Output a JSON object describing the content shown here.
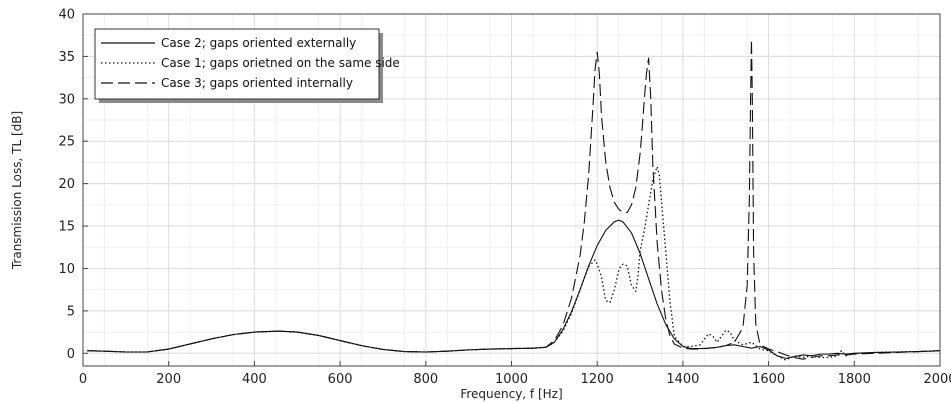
{
  "chart_data": {
    "type": "line",
    "title": "",
    "xlabel": "Frequency, f [Hz]",
    "ylabel": "Transmission Loss, TL [dB]",
    "xlim": [
      0,
      2000
    ],
    "ylim": [
      -1.5,
      40
    ],
    "xticks": [
      0,
      200,
      400,
      600,
      800,
      1000,
      1200,
      1400,
      1600,
      1800,
      2000
    ],
    "yticks": [
      0,
      5,
      10,
      15,
      20,
      25,
      30,
      35,
      40
    ],
    "xtick_labels": [
      "0",
      "200",
      "400",
      "600",
      "800",
      "1000",
      "1200",
      "1400",
      "1600",
      "1800",
      "2000"
    ],
    "ytick_labels": [
      "0",
      "5",
      "10",
      "15",
      "20",
      "25",
      "30",
      "35",
      "40"
    ],
    "grid": true,
    "legend_position": "top-left",
    "series": [
      {
        "name": "Case 2; gaps oriented externally",
        "style": "solid",
        "x": [
          10,
          50,
          100,
          150,
          200,
          250,
          300,
          350,
          400,
          450,
          460,
          500,
          550,
          600,
          650,
          700,
          750,
          800,
          850,
          900,
          950,
          1000,
          1050,
          1080,
          1100,
          1120,
          1140,
          1160,
          1180,
          1200,
          1220,
          1240,
          1250,
          1260,
          1280,
          1300,
          1320,
          1340,
          1360,
          1380,
          1400,
          1420,
          1440,
          1460,
          1480,
          1500,
          1520,
          1540,
          1560,
          1580,
          1600,
          1620,
          1640,
          1660,
          1680,
          1700,
          1720,
          1740,
          1760,
          1780,
          1800,
          1850,
          1900,
          1950,
          2000
        ],
        "y": [
          0.3,
          0.25,
          0.15,
          0.15,
          0.5,
          1.1,
          1.7,
          2.2,
          2.5,
          2.6,
          2.6,
          2.5,
          2.1,
          1.5,
          0.9,
          0.45,
          0.2,
          0.15,
          0.25,
          0.4,
          0.5,
          0.55,
          0.6,
          0.7,
          1.3,
          2.8,
          4.9,
          7.5,
          10.3,
          12.7,
          14.5,
          15.5,
          15.7,
          15.5,
          14.2,
          11.8,
          8.8,
          5.8,
          3.4,
          1.7,
          0.8,
          0.55,
          0.55,
          0.6,
          0.7,
          0.9,
          1.0,
          0.8,
          0.6,
          0.8,
          0.4,
          -0.3,
          -0.6,
          -0.4,
          -0.2,
          -0.3,
          -0.1,
          -0.1,
          0.0,
          -0.1,
          0.0,
          0.1,
          0.15,
          0.2,
          0.3
        ]
      },
      {
        "name": "Case 1; gaps orietned on the same side",
        "style": "dotted",
        "x": [
          10,
          50,
          100,
          150,
          200,
          250,
          300,
          350,
          400,
          450,
          460,
          500,
          550,
          600,
          650,
          700,
          750,
          800,
          850,
          900,
          950,
          1000,
          1050,
          1080,
          1100,
          1120,
          1140,
          1160,
          1180,
          1195,
          1200,
          1210,
          1220,
          1230,
          1240,
          1250,
          1255,
          1260,
          1270,
          1280,
          1290,
          1295,
          1300,
          1310,
          1320,
          1330,
          1340,
          1345,
          1350,
          1360,
          1370,
          1380,
          1400,
          1420,
          1440,
          1460,
          1470,
          1480,
          1490,
          1500,
          1510,
          1520,
          1540,
          1560,
          1580,
          1600,
          1620,
          1640,
          1660,
          1680,
          1700,
          1720,
          1740,
          1760,
          1770,
          1780,
          1800,
          1850,
          1900,
          1950,
          2000
        ],
        "y": [
          0.3,
          0.25,
          0.15,
          0.15,
          0.5,
          1.1,
          1.7,
          2.2,
          2.5,
          2.6,
          2.6,
          2.5,
          2.1,
          1.5,
          0.9,
          0.45,
          0.2,
          0.15,
          0.25,
          0.4,
          0.5,
          0.55,
          0.6,
          0.7,
          1.3,
          2.6,
          4.7,
          7.5,
          10.2,
          11.0,
          10.5,
          9.0,
          6.2,
          6.0,
          7.5,
          9.7,
          10.3,
          10.5,
          10.3,
          8.0,
          7.3,
          9.0,
          12.0,
          14.5,
          17.5,
          20.5,
          22.0,
          21.0,
          18.0,
          12.0,
          6.0,
          2.0,
          0.8,
          0.8,
          1.0,
          2.3,
          2.0,
          1.3,
          2.0,
          2.7,
          2.5,
          1.5,
          1.0,
          1.3,
          0.5,
          0.3,
          -0.3,
          -0.8,
          -0.3,
          -0.5,
          -0.3,
          -0.5,
          -0.5,
          -0.3,
          0.3,
          -0.3,
          0.0,
          0.1,
          0.15,
          0.2,
          0.3
        ]
      },
      {
        "name": "Case 3; gaps oriented internally",
        "style": "dashed",
        "x": [
          10,
          50,
          100,
          150,
          200,
          250,
          300,
          350,
          400,
          450,
          460,
          500,
          550,
          600,
          650,
          700,
          750,
          800,
          850,
          900,
          950,
          1000,
          1050,
          1080,
          1100,
          1120,
          1140,
          1160,
          1170,
          1180,
          1190,
          1195,
          1200,
          1205,
          1210,
          1220,
          1230,
          1240,
          1250,
          1260,
          1270,
          1280,
          1290,
          1300,
          1305,
          1310,
          1315,
          1320,
          1325,
          1330,
          1340,
          1350,
          1360,
          1370,
          1380,
          1400,
          1420,
          1440,
          1460,
          1480,
          1500,
          1520,
          1540,
          1550,
          1555,
          1558,
          1560,
          1562,
          1565,
          1570,
          1580,
          1600,
          1620,
          1640,
          1660,
          1680,
          1700,
          1720,
          1740,
          1760,
          1780,
          1800,
          1850,
          1900,
          1950,
          2000
        ],
        "y": [
          0.3,
          0.25,
          0.15,
          0.15,
          0.5,
          1.1,
          1.7,
          2.2,
          2.5,
          2.6,
          2.6,
          2.5,
          2.1,
          1.5,
          0.9,
          0.45,
          0.2,
          0.15,
          0.25,
          0.4,
          0.5,
          0.55,
          0.6,
          0.7,
          1.5,
          3.3,
          6.5,
          11.5,
          15.5,
          21.0,
          29.0,
          33.5,
          35.5,
          33.0,
          28.0,
          22.5,
          19.5,
          17.8,
          17.0,
          16.6,
          16.6,
          17.5,
          19.5,
          23.5,
          26.5,
          30.0,
          33.0,
          34.8,
          30.0,
          22.0,
          13.0,
          7.5,
          4.0,
          2.0,
          1.1,
          0.6,
          0.5,
          0.5,
          0.6,
          0.7,
          0.9,
          1.3,
          3.0,
          8.0,
          18.0,
          30.0,
          37.0,
          30.0,
          12.0,
          3.5,
          1.0,
          0.5,
          0.2,
          -0.2,
          -0.5,
          -0.7,
          -0.5,
          -0.3,
          -0.3,
          -0.2,
          -0.2,
          -0.1,
          0.0,
          0.1,
          0.2,
          0.3
        ]
      }
    ]
  }
}
